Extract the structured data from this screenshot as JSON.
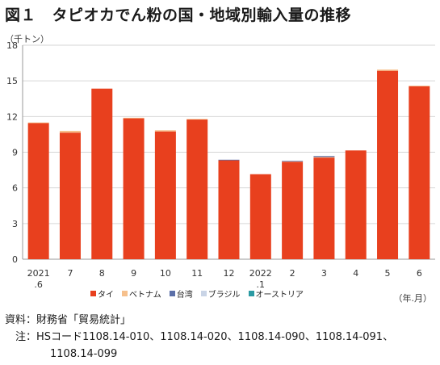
{
  "title": "図１　タピオカでん粉の国・地域別輸入量の推移",
  "unit_y": "（千トン）",
  "unit_x": "（年.月）",
  "source": "資料：財務省「貿易統計」",
  "note_line1": "　注：HSコード1108.14-010、1108.14-020、1108.14-090、1108.14-091、",
  "note_line2": "1108.14-099",
  "colors": {
    "thai": "#e8401e",
    "vietnam": "#f6c08c",
    "taiwan": "#5b6fa8",
    "brazil": "#c9d4e6",
    "australia": "#2a9aa3"
  },
  "chart_data": {
    "type": "bar",
    "stacked": true,
    "categories": [
      [
        "2021",
        ".6"
      ],
      [
        "7"
      ],
      [
        "8"
      ],
      [
        "9"
      ],
      [
        "10"
      ],
      [
        "11"
      ],
      [
        "12"
      ],
      [
        "2022",
        ".1"
      ],
      [
        "2"
      ],
      [
        "3"
      ],
      [
        "4"
      ],
      [
        "5"
      ],
      [
        "6"
      ]
    ],
    "series": [
      {
        "name": "タイ",
        "color": "#e8401e",
        "values": [
          11.45,
          10.65,
          14.35,
          11.85,
          10.75,
          11.75,
          8.35,
          7.15,
          8.2,
          8.55,
          9.15,
          15.85,
          14.55
        ]
      },
      {
        "name": "ベトナム",
        "color": "#f6c08c",
        "values": [
          0.05,
          0.15,
          0.0,
          0.05,
          0.1,
          0.05,
          0.0,
          0.0,
          0.05,
          0.05,
          0.0,
          0.1,
          0.05
        ]
      },
      {
        "name": "台湾",
        "color": "#5b6fa8",
        "values": [
          0.0,
          0.0,
          0.0,
          0.0,
          0.0,
          0.0,
          0.02,
          0.0,
          0.02,
          0.08,
          0.0,
          0.0,
          0.0
        ]
      },
      {
        "name": "ブラジル",
        "color": "#c9d4e6",
        "values": [
          0.0,
          0.0,
          0.0,
          0.0,
          0.0,
          0.0,
          0.0,
          0.0,
          0.0,
          0.0,
          0.0,
          0.0,
          0.0
        ]
      },
      {
        "name": "オーストリア",
        "color": "#2a9aa3",
        "values": [
          0.0,
          0.0,
          0.0,
          0.0,
          0.0,
          0.0,
          0.0,
          0.0,
          0.0,
          0.0,
          0.0,
          0.0,
          0.0
        ]
      }
    ],
    "ylim": [
      0,
      18
    ],
    "yticks": [
      0,
      3,
      6,
      9,
      12,
      15,
      18
    ],
    "legend_position": "bottom"
  }
}
